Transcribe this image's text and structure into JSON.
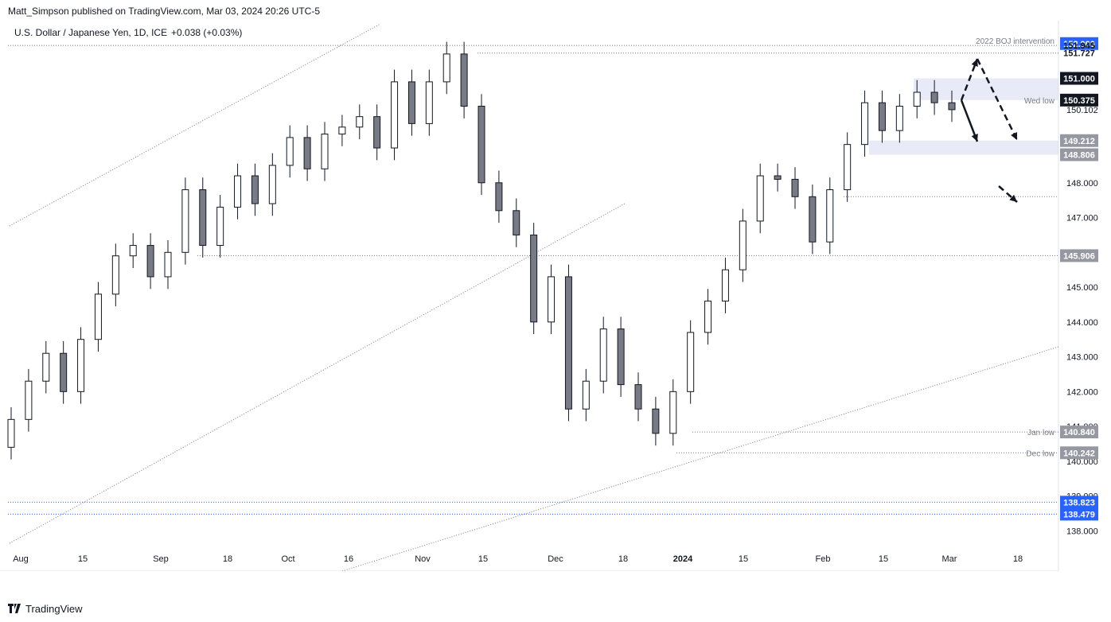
{
  "header": {
    "text": "Matt_Simpson published on TradingView.com, Mar 03, 2024 20:26 UTC-5"
  },
  "footer": {
    "brand": "TradingView",
    "logo_icon": "tradingview-logo-icon"
  },
  "chart_data": {
    "type": "candlestick",
    "title": "U.S. Dollar / Japanese Yen, 1D, ICE",
    "change": "+0.038 (+0.03%)",
    "ylim": [
      137.3,
      152.2
    ],
    "y_ticks": [
      "138.000",
      "139.000",
      "140.000",
      "141.000",
      "142.000",
      "143.000",
      "144.000",
      "145.000",
      "146.000",
      "147.000",
      "148.000",
      "150.102"
    ],
    "x_tick_labels": [
      "Aug",
      "15",
      "Sep",
      "18",
      "Oct",
      "16",
      "Nov",
      "15",
      "Dec",
      "18",
      "2024",
      "15",
      "Feb",
      "15",
      "Mar",
      "18"
    ],
    "price_labels": [
      {
        "value": 152.0,
        "text": "152.000",
        "style": "blue"
      },
      {
        "value": 151.945,
        "text": "151.945",
        "style": "plain"
      },
      {
        "value": 151.727,
        "text": "151.727",
        "style": "plain"
      },
      {
        "value": 151.0,
        "text": "151.000",
        "style": "black"
      },
      {
        "value": 150.375,
        "text": "150.375",
        "style": "black"
      },
      {
        "value": 149.212,
        "text": "149.212",
        "style": "gray"
      },
      {
        "value": 148.806,
        "text": "148.806",
        "style": "gray"
      },
      {
        "value": 145.906,
        "text": "145.906",
        "style": "gray"
      },
      {
        "value": 140.84,
        "text": "140.840",
        "style": "gray"
      },
      {
        "value": 140.242,
        "text": "140.242",
        "style": "gray"
      },
      {
        "value": 138.823,
        "text": "138.823",
        "style": "blue"
      },
      {
        "value": 138.479,
        "text": "138.479",
        "style": "blue"
      }
    ],
    "annotations": [
      {
        "text": "2022 BOJ intervention",
        "level": 151.945
      },
      {
        "text": "Wed low",
        "level": 150.375
      },
      {
        "text": "Jan low",
        "level": 140.84
      },
      {
        "text": "Dec low",
        "level": 140.242
      }
    ],
    "zones": [
      {
        "from": 150.375,
        "to": 151.0
      },
      {
        "from": 148.806,
        "to": 149.212
      }
    ],
    "ohlc_sample_closes": [
      141.2,
      142.3,
      143.1,
      142.0,
      143.5,
      144.8,
      145.9,
      146.2,
      145.3,
      146.0,
      147.8,
      146.2,
      147.3,
      148.2,
      147.4,
      148.5,
      149.3,
      148.4,
      149.4,
      149.6,
      149.9,
      149.0,
      150.9,
      149.7,
      150.9,
      151.7,
      150.2,
      148.0,
      147.2,
      146.5,
      144.0,
      145.3,
      141.5,
      142.3,
      143.8,
      142.2,
      141.5,
      140.8,
      142.0,
      143.7,
      144.6,
      145.5,
      146.9,
      148.2,
      148.1,
      147.6,
      146.3,
      147.8,
      149.1,
      150.3,
      149.5,
      150.2,
      150.6,
      150.3,
      150.1
    ]
  }
}
